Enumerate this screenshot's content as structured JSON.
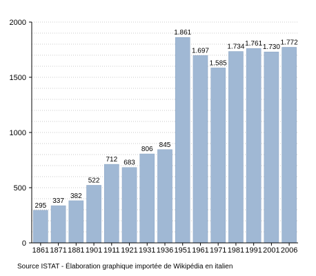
{
  "chart_data": {
    "type": "bar",
    "categories": [
      "1861",
      "1871",
      "1881",
      "1901",
      "1911",
      "1921",
      "1931",
      "1936",
      "1951",
      "1961",
      "1971",
      "1981",
      "1991",
      "2001",
      "2006"
    ],
    "values": [
      295,
      337,
      382,
      522,
      712,
      683,
      806,
      845,
      1861,
      1697,
      1585,
      1734,
      1761,
      1730,
      1772
    ],
    "value_labels": [
      "295",
      "337",
      "382",
      "522",
      "712",
      "683",
      "806",
      "845",
      "1.861",
      "1.697",
      "1.585",
      "1.734",
      "1.761",
      "1.730",
      "1.772"
    ],
    "ylim": [
      0,
      2000
    ],
    "yticks": [
      0,
      500,
      1000,
      1500,
      2000
    ],
    "grid": "horizontal",
    "bar_color": "#a0b8d4",
    "bar_edge_color": "#8aa4c2"
  },
  "source_text": "Source ISTAT - Élaboration graphique importée de Wikipédia en italien"
}
